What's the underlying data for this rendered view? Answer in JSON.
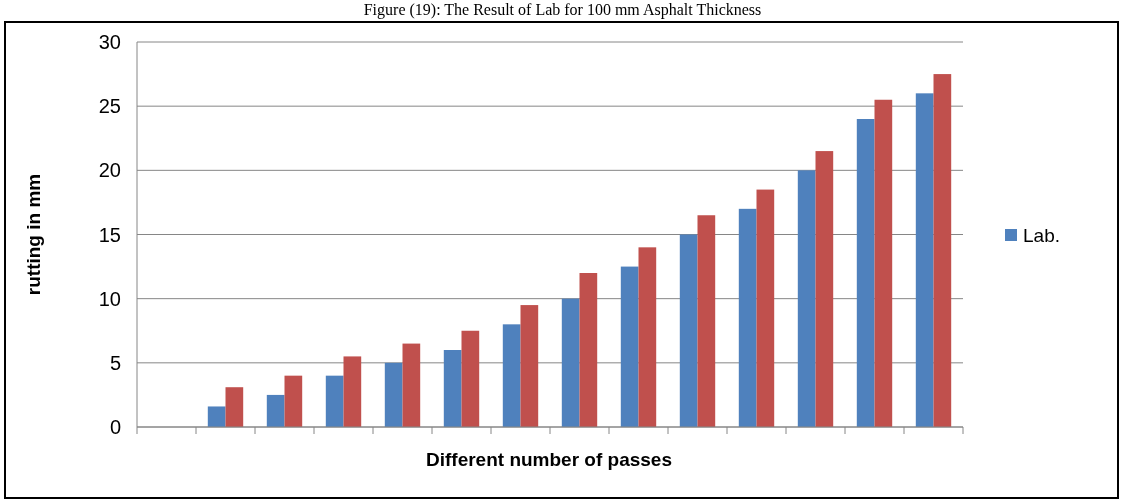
{
  "chart_data": {
    "type": "bar",
    "title": "Figure (19): The Result of Lab for 100 mm Asphalt Thickness",
    "xlabel": "Different number of passes",
    "ylabel": "rutting in mm",
    "categories": [
      null,
      null,
      null,
      null,
      null,
      null,
      null,
      null,
      null,
      null,
      null,
      null,
      null,
      null
    ],
    "series": [
      {
        "name": "Lab.",
        "color": "#4f81bd",
        "values": [
          null,
          1.6,
          2.5,
          4,
          5,
          6,
          8,
          10,
          12.5,
          15,
          17,
          20,
          24,
          26
        ]
      },
      {
        "color": "#c0504d",
        "values": [
          null,
          3.1,
          4,
          5.5,
          6.5,
          7.5,
          9.5,
          12,
          14,
          16.5,
          18.5,
          21.5,
          25.5,
          27.5
        ]
      }
    ],
    "ylim": [
      0,
      30
    ],
    "yticks": [
      0,
      5,
      10,
      15,
      20,
      25,
      30
    ],
    "grid": "y",
    "legend": "right"
  }
}
